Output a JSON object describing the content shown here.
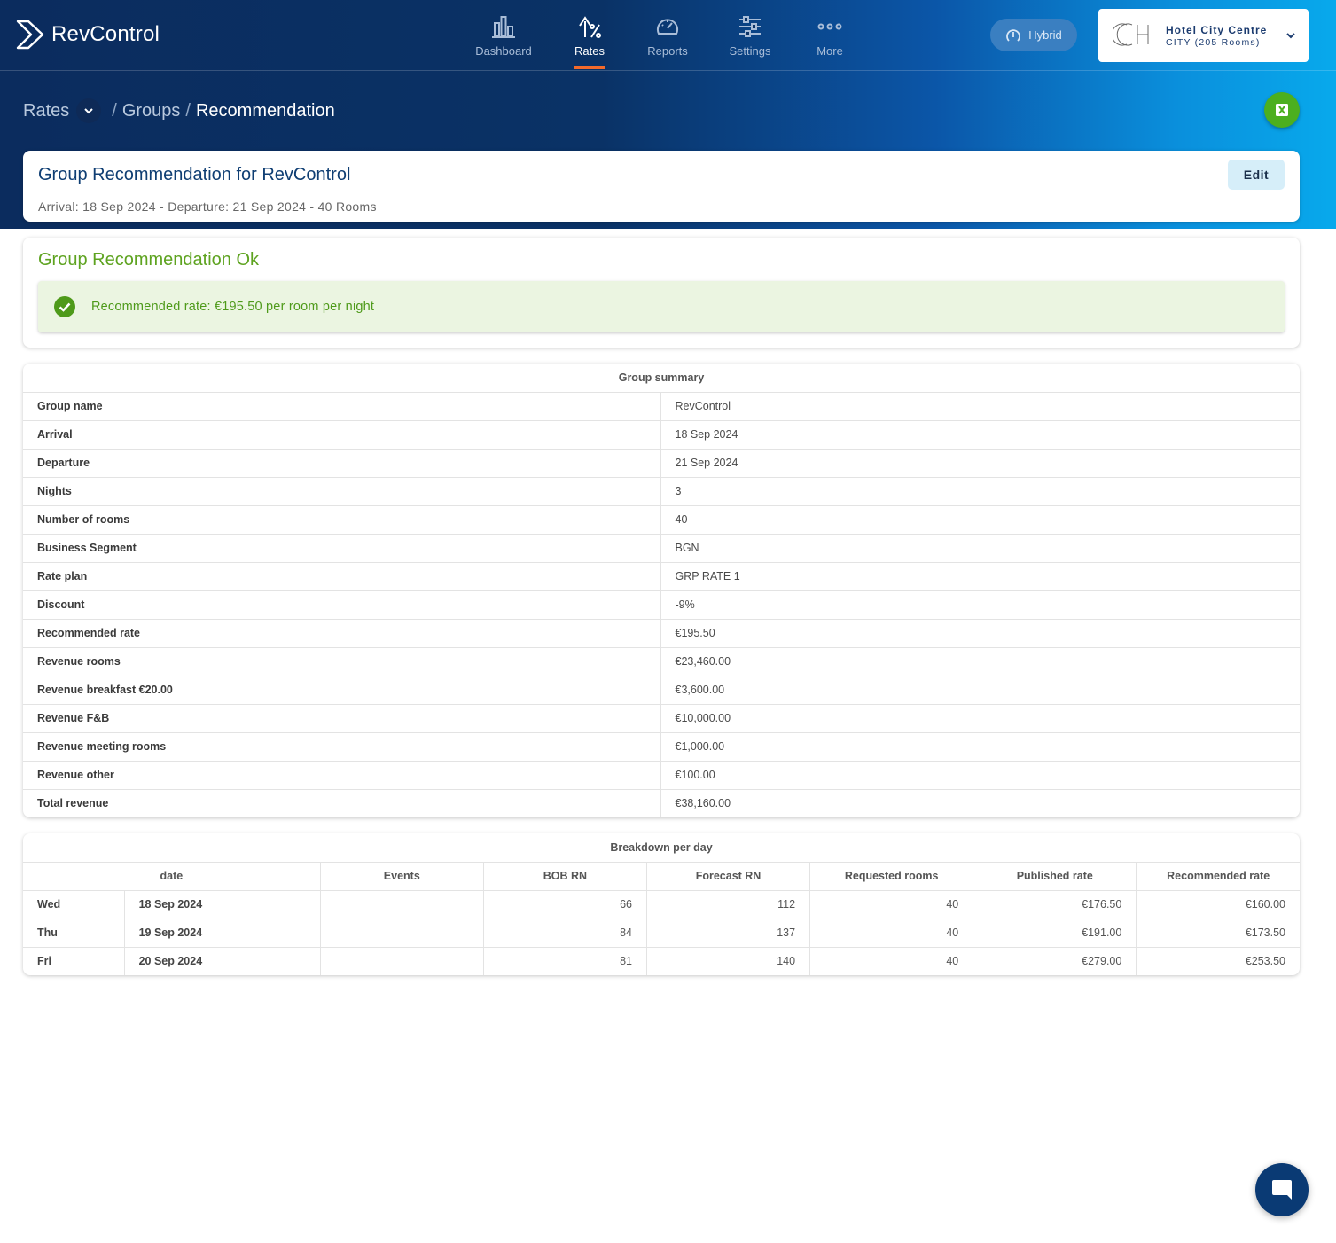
{
  "app": {
    "name": "RevControl"
  },
  "nav": [
    {
      "id": "dashboard",
      "label": "Dashboard",
      "icon": "bar-chart-icon",
      "active": false
    },
    {
      "id": "rates",
      "label": "Rates",
      "icon": "rate-up-icon",
      "active": true
    },
    {
      "id": "reports",
      "label": "Reports",
      "icon": "gauge-icon",
      "active": false
    },
    {
      "id": "settings",
      "label": "Settings",
      "icon": "sliders-icon",
      "active": false
    },
    {
      "id": "more",
      "label": "More",
      "icon": "more-dots-icon",
      "active": false
    }
  ],
  "mode": {
    "label": "Hybrid",
    "icon": "hybrid-gauge-icon"
  },
  "hotel": {
    "name": "Hotel City Centre",
    "sub": "CITY (205 Rooms)"
  },
  "breadcrumb": {
    "root": "Rates",
    "middle": "Groups",
    "current": "Recommendation",
    "sep": "/"
  },
  "header": {
    "title": "Group Recommendation for RevControl",
    "meta": "Arrival: 18 Sep 2024 - Departure: 21 Sep 2024 - 40 Rooms",
    "edit_label": "Edit"
  },
  "status": {
    "title": "Group Recommendation Ok",
    "message": "Recommended rate: €195.50 per room per night",
    "color": "#5ea320"
  },
  "summary": {
    "caption": "Group summary",
    "rows": [
      {
        "k": "Group name",
        "v": "RevControl"
      },
      {
        "k": "Arrival",
        "v": "18 Sep 2024"
      },
      {
        "k": "Departure",
        "v": "21 Sep 2024"
      },
      {
        "k": "Nights",
        "v": "3"
      },
      {
        "k": "Number of rooms",
        "v": "40"
      },
      {
        "k": "Business Segment",
        "v": "BGN"
      },
      {
        "k": "Rate plan",
        "v": "GRP RATE 1"
      },
      {
        "k": "Discount",
        "v": "-9%"
      },
      {
        "k": "Recommended rate",
        "v": "€195.50"
      },
      {
        "k": "Revenue rooms",
        "v": "€23,460.00"
      },
      {
        "k": "Revenue breakfast €20.00",
        "v": "€3,600.00"
      },
      {
        "k": "Revenue F&B",
        "v": "€10,000.00"
      },
      {
        "k": "Revenue meeting rooms",
        "v": "€1,000.00"
      },
      {
        "k": "Revenue other",
        "v": "€100.00"
      },
      {
        "k": "Total revenue",
        "v": "€38,160.00"
      }
    ]
  },
  "breakdown": {
    "caption": "Breakdown per day",
    "headers": [
      "date",
      "Events",
      "BOB RN",
      "Forecast RN",
      "Requested rooms",
      "Published rate",
      "Recommended rate"
    ],
    "rows": [
      {
        "day": "Wed",
        "date": "18 Sep 2024",
        "events": "",
        "bob": "66",
        "forecast": "112",
        "requested": "40",
        "published": "€176.50",
        "recommended": "€160.00"
      },
      {
        "day": "Thu",
        "date": "19 Sep 2024",
        "events": "",
        "bob": "84",
        "forecast": "137",
        "requested": "40",
        "published": "€191.00",
        "recommended": "€173.50"
      },
      {
        "day": "Fri",
        "date": "20 Sep 2024",
        "events": "",
        "bob": "81",
        "forecast": "140",
        "requested": "40",
        "published": "€279.00",
        "recommended": "€253.50"
      }
    ]
  },
  "colors": {
    "accent": "#f26a2b",
    "primary": "#0f3e73",
    "excel": "#4caf1f"
  }
}
